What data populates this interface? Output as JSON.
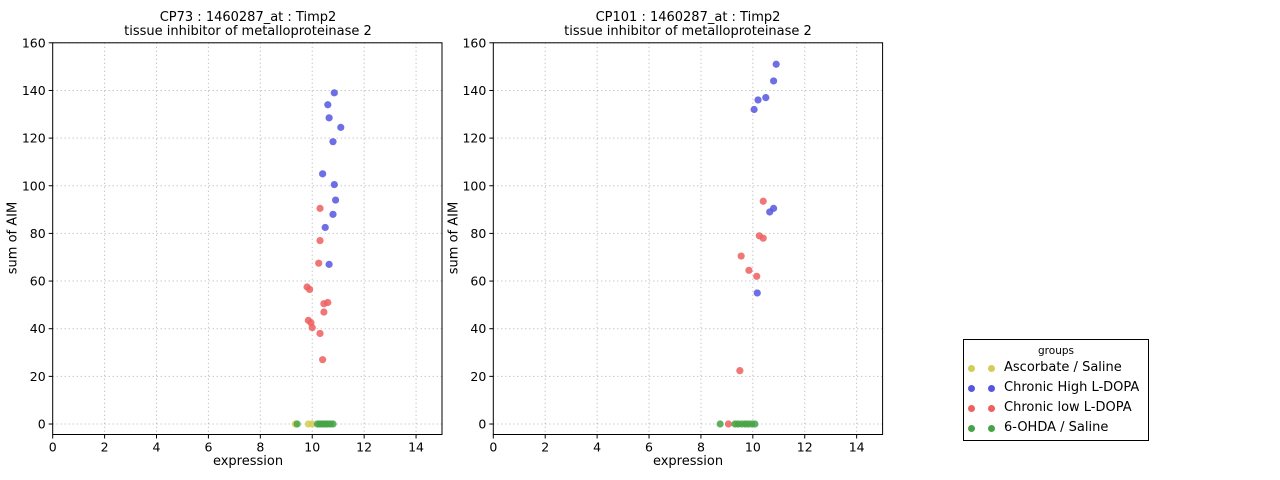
{
  "figure": {
    "background": "#ffffff",
    "text_color": "#000000",
    "grid_color": "#b0b0b0"
  },
  "legend": {
    "title": "groups",
    "entries": [
      {
        "label": "Ascorbate / Saline",
        "color": "#d3cc55"
      },
      {
        "label": "Chronic High L-DOPA",
        "color": "#5656e0"
      },
      {
        "label": "Chronic low L-DOPA",
        "color": "#ee5f5f"
      },
      {
        "label": "6-OHDA / Saline",
        "color": "#47a347"
      }
    ]
  },
  "chart_data": [
    {
      "type": "scatter",
      "title_line1": "CP73 : 1460287_at : Timp2",
      "title_line2": "tissue inhibitor of metalloproteinase 2",
      "xlabel": "expression",
      "ylabel": "sum of AIM",
      "xlim": [
        0,
        15
      ],
      "ylim": [
        -4.4,
        160
      ],
      "xticks": [
        0,
        2,
        4,
        6,
        8,
        10,
        12,
        14
      ],
      "yticks": [
        0,
        20,
        40,
        60,
        80,
        100,
        120,
        140,
        160
      ],
      "grid": true,
      "marker": "circle",
      "series": [
        {
          "name": "Ascorbate / Saline",
          "color": "#d3cc55",
          "points": [
            [
              9.35,
              0
            ],
            [
              9.85,
              0
            ],
            [
              10.0,
              0
            ]
          ]
        },
        {
          "name": "Chronic High L-DOPA",
          "color": "#5656e0",
          "points": [
            [
              10.85,
              139
            ],
            [
              10.6,
              134
            ],
            [
              10.65,
              128.5
            ],
            [
              11.1,
              124.5
            ],
            [
              10.8,
              118.5
            ],
            [
              10.4,
              105
            ],
            [
              10.85,
              100.5
            ],
            [
              10.9,
              94
            ],
            [
              10.8,
              88
            ],
            [
              10.5,
              82.5
            ],
            [
              10.65,
              67
            ]
          ]
        },
        {
          "name": "Chronic low L-DOPA",
          "color": "#ee5f5f",
          "points": [
            [
              10.3,
              90.5
            ],
            [
              10.3,
              77
            ],
            [
              10.25,
              67.5
            ],
            [
              9.8,
              57.5
            ],
            [
              9.9,
              56.5
            ],
            [
              10.45,
              50.5
            ],
            [
              10.6,
              51
            ],
            [
              10.45,
              47
            ],
            [
              9.85,
              43.5
            ],
            [
              9.95,
              42.5
            ],
            [
              10.0,
              40.5
            ],
            [
              10.3,
              38
            ],
            [
              10.4,
              27
            ]
          ]
        },
        {
          "name": "6-OHDA / Saline",
          "color": "#47a347",
          "points": [
            [
              9.42,
              0
            ],
            [
              10.2,
              0
            ],
            [
              10.28,
              0
            ],
            [
              10.36,
              0
            ],
            [
              10.44,
              0
            ],
            [
              10.52,
              0
            ],
            [
              10.6,
              0
            ],
            [
              10.7,
              0
            ],
            [
              10.8,
              0
            ]
          ]
        }
      ]
    },
    {
      "type": "scatter",
      "title_line1": "CP101 : 1460287_at : Timp2",
      "title_line2": "tissue inhibitor of metalloproteinase 2",
      "xlabel": "expression",
      "ylabel": "sum of AIM",
      "xlim": [
        0,
        15
      ],
      "ylim": [
        -4.4,
        160
      ],
      "xticks": [
        0,
        2,
        4,
        6,
        8,
        10,
        12,
        14
      ],
      "yticks": [
        0,
        20,
        40,
        60,
        80,
        100,
        120,
        140,
        160
      ],
      "grid": true,
      "marker": "circle",
      "series": [
        {
          "name": "Ascorbate / Saline",
          "color": "#d3cc55",
          "points": [
            [
              9.37,
              0
            ],
            [
              9.75,
              0
            ]
          ]
        },
        {
          "name": "Chronic High L-DOPA",
          "color": "#5656e0",
          "points": [
            [
              10.9,
              151
            ],
            [
              10.8,
              144
            ],
            [
              10.5,
              137
            ],
            [
              10.2,
              136
            ],
            [
              10.05,
              132
            ],
            [
              10.8,
              90.5
            ],
            [
              10.65,
              89
            ],
            [
              10.17,
              55
            ]
          ]
        },
        {
          "name": "Chronic low L-DOPA",
          "color": "#ee5f5f",
          "points": [
            [
              10.4,
              93.5
            ],
            [
              10.25,
              79
            ],
            [
              10.4,
              78
            ],
            [
              9.55,
              70.5
            ],
            [
              9.85,
              64.5
            ],
            [
              10.15,
              62
            ],
            [
              9.5,
              22.4
            ],
            [
              9.06,
              0
            ]
          ]
        },
        {
          "name": "6-OHDA / Saline",
          "color": "#47a347",
          "points": [
            [
              8.74,
              0
            ],
            [
              9.31,
              0
            ],
            [
              9.44,
              0
            ],
            [
              9.57,
              0
            ],
            [
              9.7,
              0
            ],
            [
              9.83,
              0
            ],
            [
              9.96,
              0
            ],
            [
              10.08,
              0
            ]
          ]
        }
      ]
    }
  ]
}
